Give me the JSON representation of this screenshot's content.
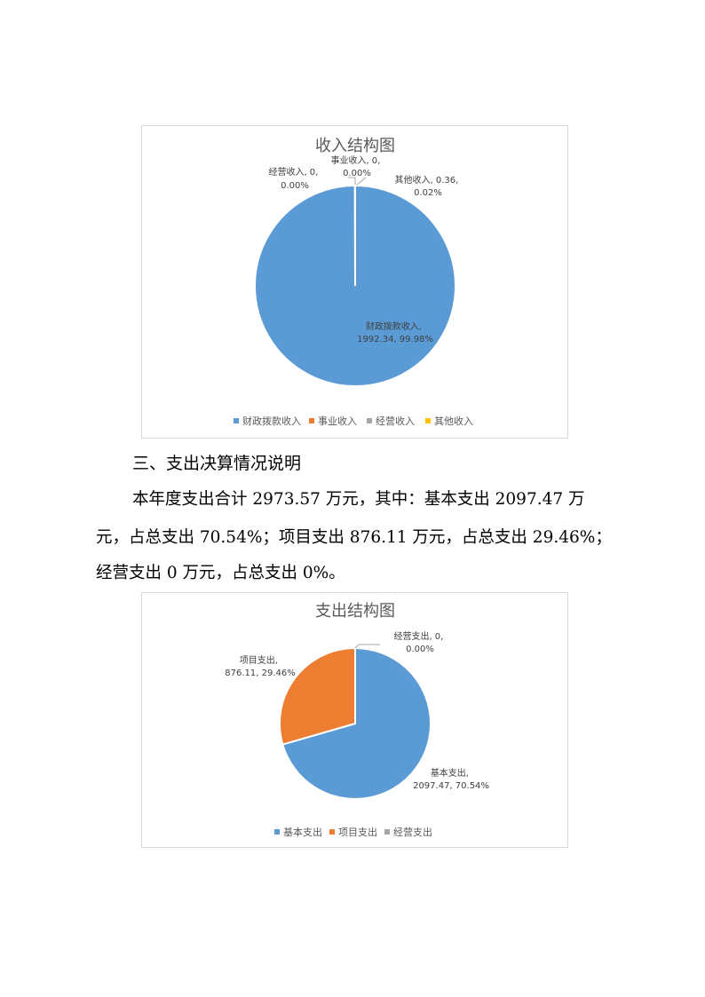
{
  "income_chart": {
    "title": "收入结构图",
    "data_labels": [
      [
        "财政拨款收入,",
        "1992.34, 99.98%"
      ],
      [
        "事业收入, 0,",
        "0.00%"
      ],
      [
        "经营收入, 0,",
        "0.00%"
      ],
      [
        "其他收入, 0.36,",
        "0.02%"
      ]
    ],
    "legend": [
      "财政拨款收入",
      "事业收入",
      "经营收入",
      "其他收入"
    ],
    "colors": [
      "#5b9bd5",
      "#ed7d31",
      "#a5a5a5",
      "#ffc000"
    ]
  },
  "section_heading": "三、支出决算情况说明",
  "paragraph": {
    "line1": "本年度支出合计 2973.57 万元，其中：基本支出 2097.47 万",
    "line2": "元，占总支出 70.54%；项目支出 876.11 万元，占总支出 29.46%；",
    "line3": "经营支出 0 万元，占总支出 0%。"
  },
  "expense_chart": {
    "title": "支出结构图",
    "data_labels": [
      [
        "基本支出,",
        "2097.47, 70.54%"
      ],
      [
        "项目支出,",
        "876.11, 29.46%"
      ],
      [
        "经营支出, 0,",
        "0.00%"
      ]
    ],
    "legend": [
      "基本支出",
      "项目支出",
      "经营支出"
    ],
    "colors": [
      "#5b9bd5",
      "#ed7d31",
      "#a5a5a5"
    ]
  },
  "chart_data": [
    {
      "type": "pie",
      "title": "收入结构图",
      "categories": [
        "财政拨款收入",
        "事业收入",
        "经营收入",
        "其他收入"
      ],
      "values": [
        1992.34,
        0,
        0,
        0.36
      ],
      "percents": [
        99.98,
        0.0,
        0.0,
        0.02
      ],
      "legend": "bottom"
    },
    {
      "type": "pie",
      "title": "支出结构图",
      "categories": [
        "基本支出",
        "项目支出",
        "经营支出"
      ],
      "values": [
        2097.47,
        876.11,
        0
      ],
      "percents": [
        70.54,
        29.46,
        0.0
      ],
      "legend": "bottom"
    }
  ]
}
